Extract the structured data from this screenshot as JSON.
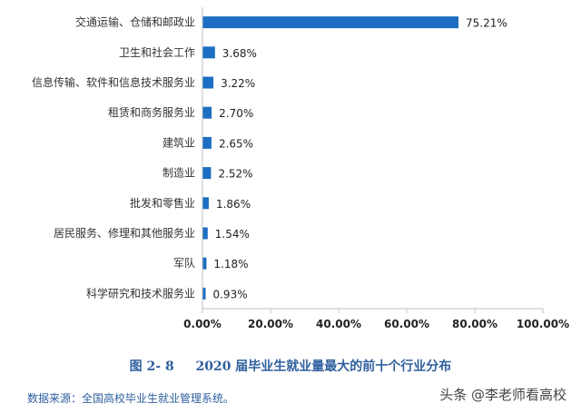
{
  "chart_data": {
    "type": "bar",
    "orientation": "horizontal",
    "categories": [
      "交通运输、仓储和邮政业",
      "卫生和社会工作",
      "信息传输、软件和信息技术服务业",
      "租赁和商务服务业",
      "建筑业",
      "制造业",
      "批发和零售业",
      "居民服务、修理和其他服务业",
      "军队",
      "科学研究和技术服务业"
    ],
    "values": [
      75.21,
      3.68,
      3.22,
      2.7,
      2.65,
      2.52,
      1.86,
      1.54,
      1.18,
      0.93
    ],
    "value_labels": [
      "75.21%",
      "3.68%",
      "3.22%",
      "2.70%",
      "2.65%",
      "2.52%",
      "1.86%",
      "1.54%",
      "1.18%",
      "0.93%"
    ],
    "xlim": [
      0,
      100
    ],
    "xticks": [
      0,
      20,
      40,
      60,
      80,
      100
    ],
    "xtick_labels": [
      "0.00%",
      "20.00%",
      "40.00%",
      "60.00%",
      "80.00%",
      "100.00%"
    ],
    "bar_color": "#1c6fc2",
    "grid": false,
    "legend": "none"
  },
  "caption": {
    "number": "图 2- 8",
    "title": "2020 届毕业生就业量最大的前十个行业分布",
    "color": "#2f5f9e"
  },
  "source_note": "数据来源：全国高校毕业生就业管理系统。",
  "watermark": "头条 @李老师看高校"
}
